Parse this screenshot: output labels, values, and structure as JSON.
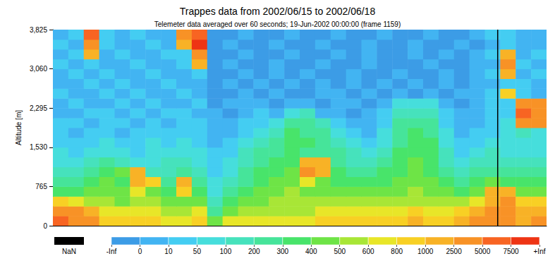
{
  "chart_data": {
    "type": "heatmap",
    "title": "Trappes data from 2002/06/15 to 2002/06/18",
    "subtitle": "Telemeter data averaged over 60 seconds; 19-Jun-2002 00:00:00 (frame 1159)",
    "ylabel": "Altitude [m]",
    "xlim": [
      0,
      96
    ],
    "ylim": [
      0,
      3825
    ],
    "yticks": [
      0,
      765,
      1530,
      2295,
      3060,
      3825
    ],
    "grid": false,
    "tick_labels": "y",
    "time_marker": 86.5,
    "x_edges": [
      0,
      3,
      6,
      9,
      12,
      15,
      18,
      21,
      24,
      27,
      30,
      33,
      36,
      39,
      42,
      45,
      48,
      51,
      54,
      57,
      60,
      63,
      66,
      69,
      72,
      75,
      78,
      81,
      84,
      87,
      90,
      93,
      96
    ],
    "y_edges": [
      0,
      191.25,
      382.5,
      573.75,
      765,
      956.25,
      1147.5,
      1338.75,
      1530,
      1721.25,
      1912.5,
      2103.75,
      2295,
      2486.25,
      2677.5,
      2868.75,
      3060,
      3251.25,
      3442.5,
      3633.75,
      3825
    ],
    "z": [
      [
        6000,
        3500,
        3500,
        900,
        900,
        900,
        900,
        700,
        700,
        900,
        450,
        700,
        700,
        700,
        700,
        700,
        700,
        900,
        900,
        900,
        900,
        900,
        900,
        1500,
        900,
        900,
        1500,
        3500,
        3500,
        3500,
        1500,
        3500
      ],
      [
        3500,
        3500,
        1500,
        700,
        700,
        700,
        700,
        550,
        550,
        700,
        250,
        450,
        550,
        550,
        550,
        550,
        550,
        700,
        700,
        700,
        700,
        700,
        700,
        900,
        700,
        700,
        900,
        1500,
        3500,
        3500,
        1500,
        1500
      ],
      [
        900,
        700,
        550,
        550,
        450,
        550,
        550,
        450,
        450,
        450,
        150,
        350,
        450,
        450,
        550,
        550,
        550,
        550,
        550,
        550,
        550,
        550,
        550,
        550,
        550,
        550,
        550,
        700,
        1500,
        3500,
        900,
        900
      ],
      [
        350,
        350,
        450,
        450,
        450,
        700,
        450,
        350,
        900,
        350,
        75,
        250,
        350,
        450,
        450,
        550,
        450,
        450,
        450,
        450,
        450,
        450,
        450,
        550,
        450,
        450,
        350,
        450,
        1500,
        1500,
        450,
        450
      ],
      [
        250,
        250,
        350,
        450,
        350,
        1500,
        900,
        250,
        1500,
        250,
        75,
        150,
        250,
        350,
        450,
        450,
        700,
        450,
        350,
        350,
        350,
        350,
        450,
        450,
        450,
        350,
        250,
        350,
        450,
        350,
        350,
        350
      ],
      [
        150,
        150,
        250,
        350,
        450,
        1500,
        150,
        150,
        250,
        150,
        30,
        75,
        250,
        350,
        350,
        450,
        3500,
        1500,
        350,
        250,
        250,
        350,
        350,
        450,
        350,
        250,
        150,
        250,
        250,
        250,
        250,
        250
      ],
      [
        75,
        75,
        150,
        250,
        150,
        75,
        75,
        150,
        150,
        75,
        30,
        75,
        150,
        250,
        350,
        350,
        1500,
        1500,
        250,
        150,
        150,
        250,
        350,
        450,
        350,
        150,
        75,
        150,
        150,
        150,
        150,
        150
      ],
      [
        75,
        30,
        75,
        75,
        75,
        30,
        75,
        75,
        75,
        75,
        30,
        30,
        150,
        250,
        250,
        350,
        250,
        250,
        250,
        150,
        75,
        150,
        350,
        350,
        350,
        150,
        30,
        75,
        150,
        75,
        75,
        75
      ],
      [
        30,
        30,
        30,
        75,
        30,
        30,
        75,
        30,
        75,
        30,
        5,
        30,
        75,
        150,
        250,
        350,
        350,
        250,
        150,
        75,
        30,
        75,
        250,
        350,
        350,
        75,
        30,
        30,
        75,
        75,
        75,
        75
      ],
      [
        30,
        5,
        30,
        30,
        5,
        30,
        30,
        30,
        30,
        30,
        5,
        5,
        30,
        75,
        150,
        350,
        250,
        250,
        75,
        30,
        5,
        75,
        250,
        350,
        250,
        75,
        5,
        30,
        30,
        75,
        150,
        75
      ],
      [
        30,
        30,
        5,
        30,
        30,
        5,
        30,
        5,
        30,
        30,
        5,
        5,
        30,
        30,
        75,
        250,
        250,
        150,
        30,
        5,
        5,
        30,
        250,
        250,
        250,
        30,
        5,
        5,
        30,
        75,
        3500,
        3500
      ],
      [
        5,
        5,
        30,
        30,
        5,
        30,
        5,
        30,
        30,
        5,
        5,
        -5,
        5,
        30,
        5,
        75,
        150,
        5,
        5,
        -5,
        5,
        30,
        150,
        150,
        150,
        30,
        5,
        5,
        30,
        30,
        6000,
        3500
      ],
      [
        5,
        30,
        5,
        5,
        30,
        5,
        30,
        5,
        5,
        30,
        -5,
        5,
        5,
        5,
        -5,
        5,
        5,
        -5,
        5,
        5,
        -5,
        5,
        75,
        75,
        75,
        5,
        -5,
        5,
        30,
        30,
        3500,
        3500
      ],
      [
        30,
        5,
        5,
        30,
        5,
        30,
        5,
        5,
        30,
        5,
        -5,
        -5,
        5,
        -5,
        5,
        -5,
        -5,
        5,
        5,
        -5,
        5,
        -5,
        5,
        -5,
        5,
        -5,
        5,
        5,
        30,
        900,
        30,
        5
      ],
      [
        5,
        5,
        30,
        5,
        30,
        5,
        5,
        30,
        5,
        5,
        -5,
        5,
        -5,
        5,
        -5,
        5,
        -5,
        5,
        -5,
        5,
        -5,
        5,
        -5,
        5,
        -5,
        5,
        -5,
        5,
        5,
        30,
        30,
        5
      ],
      [
        5,
        30,
        5,
        30,
        5,
        5,
        30,
        5,
        5,
        30,
        -5,
        -5,
        5,
        -5,
        5,
        -5,
        5,
        -5,
        -5,
        5,
        -5,
        -5,
        5,
        -5,
        -5,
        5,
        -5,
        5,
        30,
        1500,
        5,
        30
      ],
      [
        30,
        5,
        30,
        5,
        5,
        30,
        5,
        5,
        30,
        1500,
        -5,
        5,
        -5,
        -5,
        5,
        -5,
        -5,
        5,
        -5,
        -5,
        5,
        -5,
        -5,
        -5,
        5,
        -5,
        -5,
        5,
        5,
        3500,
        30,
        5
      ],
      [
        5,
        30,
        1500,
        5,
        30,
        5,
        5,
        30,
        30,
        3500,
        -5,
        -5,
        5,
        -5,
        -5,
        5,
        -5,
        -5,
        5,
        -5,
        5,
        -5,
        -5,
        5,
        -5,
        5,
        -5,
        5,
        30,
        1500,
        5,
        30
      ],
      [
        30,
        5,
        3500,
        30,
        5,
        5,
        30,
        5,
        1500,
        9000,
        -5,
        5,
        -5,
        -5,
        5,
        -5,
        -5,
        5,
        -5,
        -5,
        5,
        -5,
        -5,
        5,
        -5,
        -5,
        5,
        -5,
        5,
        30,
        5,
        5
      ],
      [
        5,
        30,
        6000,
        30,
        5,
        30,
        5,
        5,
        3500,
        6000,
        -5,
        -5,
        5,
        -5,
        -5,
        5,
        -5,
        -5,
        5,
        -5,
        -5,
        5,
        -5,
        -5,
        5,
        -5,
        -5,
        5,
        30,
        30,
        5,
        5
      ]
    ],
    "colorbar": {
      "edges": [
        "-Inf",
        0,
        10,
        50,
        100,
        200,
        300,
        400,
        500,
        600,
        800,
        1000,
        2500,
        5000,
        7500,
        "+Inf"
      ],
      "colors": [
        "#3c9ce6",
        "#42b4f2",
        "#44cdf2",
        "#46dedc",
        "#46e2bc",
        "#46e49a",
        "#48e46a",
        "#6ee446",
        "#a8e636",
        "#e8e628",
        "#f8d024",
        "#f8b226",
        "#f89226",
        "#f86422",
        "#ee3414"
      ],
      "nan_label": "NaN",
      "nan_color": "#000000"
    }
  }
}
